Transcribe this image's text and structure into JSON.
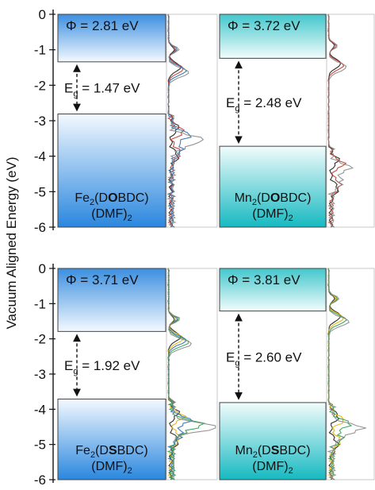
{
  "chart_data": {
    "type": "bar",
    "ylabel": "Vacuum Aligned Energy (eV)",
    "ylim": [
      -6,
      0
    ],
    "yticks": [
      "0",
      "-1",
      "-2",
      "-3",
      "-4",
      "-5",
      "-6"
    ],
    "grid": false,
    "panels": [
      {
        "panel": "top",
        "materials": [
          {
            "formula_base": "Fe",
            "sub": "2",
            "ligand_pre": "(D",
            "ligand_bold": "O",
            "ligand_post": "BDC)",
            "solvent": "(DMF)",
            "solvent_sub": "2",
            "vbm": -2.81,
            "cbm": -1.34,
            "phi_label": "Φ = 2.81 eV",
            "gap_prefix": "E",
            "gap_sub": "g",
            "gap_value": " = 1.47 eV",
            "dos_colors": [
              "#1a1a1a",
              "#c0392b",
              "#2b6fb5",
              "#888888"
            ]
          },
          {
            "formula_base": "Mn",
            "sub": "2",
            "ligand_pre": "(D",
            "ligand_bold": "O",
            "ligand_post": "BDC)",
            "solvent": "(DMF)",
            "solvent_sub": "2",
            "vbm": -3.72,
            "cbm": -1.24,
            "phi_label": "Φ = 3.72 eV",
            "gap_prefix": "E",
            "gap_sub": "g",
            "gap_value": " = 2.48 eV",
            "dos_colors": [
              "#1a1a1a",
              "#c0392b",
              "#888888"
            ]
          }
        ]
      },
      {
        "panel": "bottom",
        "materials": [
          {
            "formula_base": "Fe",
            "sub": "2",
            "ligand_pre": "(D",
            "ligand_bold": "S",
            "ligand_post": "BDC)",
            "solvent": "(DMF)",
            "solvent_sub": "2",
            "vbm": -3.71,
            "cbm": -1.79,
            "phi_label": "Φ = 3.71 eV",
            "gap_prefix": "E",
            "gap_sub": "g",
            "gap_value": " = 1.92 eV",
            "dos_colors": [
              "#1a1a1a",
              "#e0b000",
              "#2b6fb5",
              "#2e9e4f",
              "#888888"
            ]
          },
          {
            "formula_base": "Mn",
            "sub": "2",
            "ligand_pre": "(D",
            "ligand_bold": "S",
            "ligand_post": "BDC)",
            "solvent": "(DMF)",
            "solvent_sub": "2",
            "vbm": -3.81,
            "cbm": -1.21,
            "phi_label": "Φ = 3.81 eV",
            "gap_prefix": "E",
            "gap_sub": "g",
            "gap_value": " = 2.60 eV",
            "dos_colors": [
              "#1a1a1a",
              "#e0b000",
              "#2e9e4f",
              "#888888"
            ]
          }
        ]
      }
    ]
  },
  "colors": {
    "fe_band": "#2a8be0",
    "mn_band": "#19bcc4",
    "axis": "#111111"
  }
}
